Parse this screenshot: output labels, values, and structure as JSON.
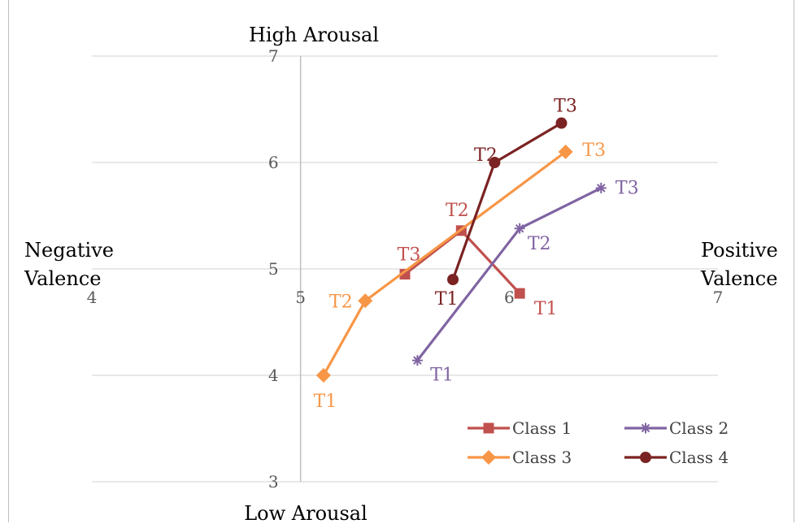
{
  "chart_data": {
    "type": "line",
    "title": "",
    "axis_labels": {
      "top": "High Arousal",
      "bottom": "Low Arousal",
      "left_line1": "Negative",
      "left_line2": "Valence",
      "right_line1": "Positive",
      "right_line2": "Valence"
    },
    "xlim": [
      4,
      7
    ],
    "ylim": [
      3,
      7
    ],
    "x_ticks": [
      "4",
      "5",
      "6",
      "7"
    ],
    "y_ticks": [
      "3",
      "4",
      "5",
      "6",
      "7"
    ],
    "axis_crossing": {
      "x": 5,
      "y": 5
    },
    "grid": "horizontal",
    "legend_position": "bottom-right",
    "series": [
      {
        "name": "Class 1",
        "color": "#c0504d",
        "marker": "square",
        "points": [
          {
            "x": 6.05,
            "y": 4.77,
            "label": "T1"
          },
          {
            "x": 5.77,
            "y": 5.36,
            "label": "T2"
          },
          {
            "x": 5.5,
            "y": 4.95,
            "label": "T3"
          }
        ]
      },
      {
        "name": "Class 2",
        "color": "#8064a2",
        "marker": "star",
        "points": [
          {
            "x": 5.56,
            "y": 4.14,
            "label": "T1"
          },
          {
            "x": 6.05,
            "y": 5.38,
            "label": "T2"
          },
          {
            "x": 6.44,
            "y": 5.76,
            "label": "T3"
          }
        ]
      },
      {
        "name": "Class 3",
        "color": "#f79646",
        "marker": "diamond",
        "points": [
          {
            "x": 5.11,
            "y": 4.0,
            "label": "T1"
          },
          {
            "x": 5.31,
            "y": 4.7,
            "label": "T2"
          },
          {
            "x": 6.27,
            "y": 6.1,
            "label": "T3"
          }
        ]
      },
      {
        "name": "Class 4",
        "color": "#7b2222",
        "marker": "circle",
        "points": [
          {
            "x": 5.73,
            "y": 4.9,
            "label": "T1"
          },
          {
            "x": 5.93,
            "y": 6.0,
            "label": "T2"
          },
          {
            "x": 6.25,
            "y": 6.37,
            "label": "T3"
          }
        ]
      }
    ]
  }
}
